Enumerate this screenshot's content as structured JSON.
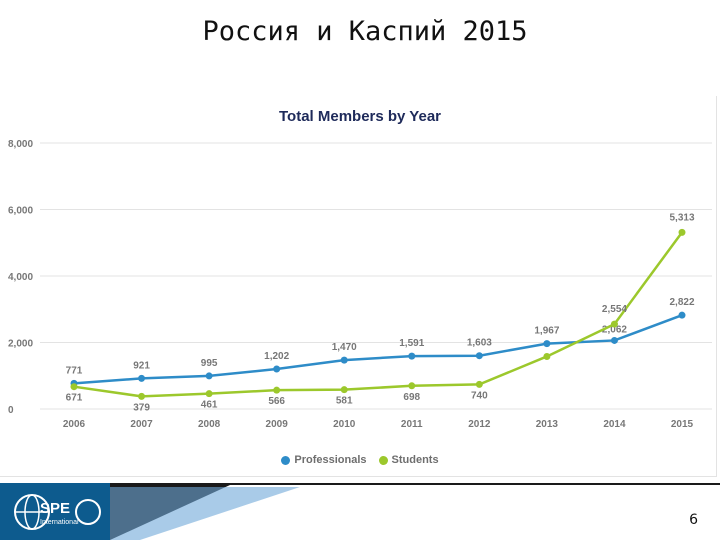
{
  "slide": {
    "title": "Россия и Каспий 2015",
    "page_number": "6",
    "logo_text": "SPE",
    "logo_subtext": "International"
  },
  "colors": {
    "professionals": "#2e8cc8",
    "students": "#9cc82c",
    "grid": "#e3e3e3",
    "axis_text": "#777777",
    "logo_bg": "#0d5b8e",
    "footer_dark": "#1a1a1a",
    "footer_blue": "#6fa8d8"
  },
  "chart_data": {
    "type": "line",
    "title": "Total Members by Year",
    "categories": [
      "2006",
      "2007",
      "2008",
      "2009",
      "2010",
      "2011",
      "2012",
      "2013",
      "2014",
      "2015"
    ],
    "ylim": [
      0,
      8000
    ],
    "yticks": [
      0,
      2000,
      4000,
      6000,
      8000
    ],
    "ytick_labels": [
      "0",
      "2,000",
      "4,000",
      "6,000",
      "8,000"
    ],
    "grid": true,
    "legend_position": "bottom",
    "series": [
      {
        "name": "Professionals",
        "color_key": "professionals",
        "values": [
          771,
          921,
          995,
          1202,
          1470,
          1591,
          1603,
          1967,
          2062,
          2822
        ],
        "labels": [
          "771",
          "921",
          "995",
          "1,202",
          "1,470",
          "1,591",
          "1,603",
          "1,967",
          "2,062",
          "2,822"
        ]
      },
      {
        "name": "Students",
        "color_key": "students",
        "values": [
          671,
          379,
          461,
          566,
          581,
          698,
          740,
          1580,
          2554,
          5313
        ],
        "labels": [
          "671",
          "379",
          "461",
          "566",
          "581",
          "698",
          "740",
          "",
          "2,554",
          "5,313"
        ]
      }
    ]
  }
}
